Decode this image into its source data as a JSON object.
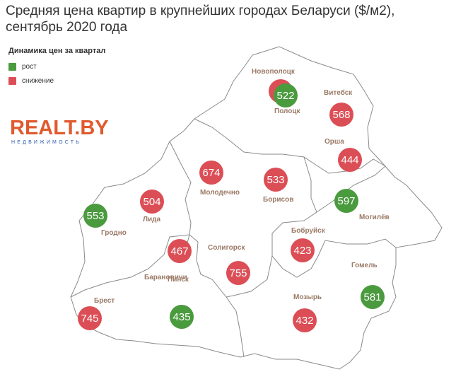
{
  "title_line1": "Средняя цена квартир в крупнейших городах Беларуси ($/м2),",
  "title_line2": "сентябрь 2020 года",
  "legend": {
    "title": "Динамика цен за квартал",
    "items": [
      {
        "label": "рост",
        "color": "#4a9a3e"
      },
      {
        "label": "снижение",
        "color": "#dc4e56"
      }
    ]
  },
  "logo": {
    "main": "REALT.BY",
    "sub": "НЕДВИЖИМОСТЬ"
  },
  "colors": {
    "rise": "#4a9a3e",
    "fall": "#dc4e56",
    "border": "#8a8a8a",
    "label": "#9a7a66"
  },
  "cities": [
    {
      "name": "Новополоцк",
      "value": "",
      "trend": "fall"
    },
    {
      "name": "Полоцк",
      "value": "522",
      "trend": "rise"
    },
    {
      "name": "Витебск",
      "value": "568",
      "trend": "fall"
    },
    {
      "name": "Орша",
      "value": "444",
      "trend": "fall"
    },
    {
      "name": "Молодечно",
      "value": "674",
      "trend": "fall"
    },
    {
      "name": "Борисов",
      "value": "533",
      "trend": "fall"
    },
    {
      "name": "Могилёв",
      "value": "597",
      "trend": "rise"
    },
    {
      "name": "Лида",
      "value": "504",
      "trend": "fall"
    },
    {
      "name": "Гродно",
      "value": "553",
      "trend": "rise"
    },
    {
      "name": "Бобруйск",
      "value": "423",
      "trend": "fall"
    },
    {
      "name": "Солигорск",
      "value": "755",
      "trend": "fall"
    },
    {
      "name": "Барановичи",
      "value": "467",
      "trend": "fall"
    },
    {
      "name": "Пинск",
      "value": "435",
      "trend": "rise"
    },
    {
      "name": "Брест",
      "value": "745",
      "trend": "fall"
    },
    {
      "name": "Мозырь",
      "value": "432",
      "trend": "fall"
    },
    {
      "name": "Гомель",
      "value": "581",
      "trend": "rise"
    }
  ]
}
